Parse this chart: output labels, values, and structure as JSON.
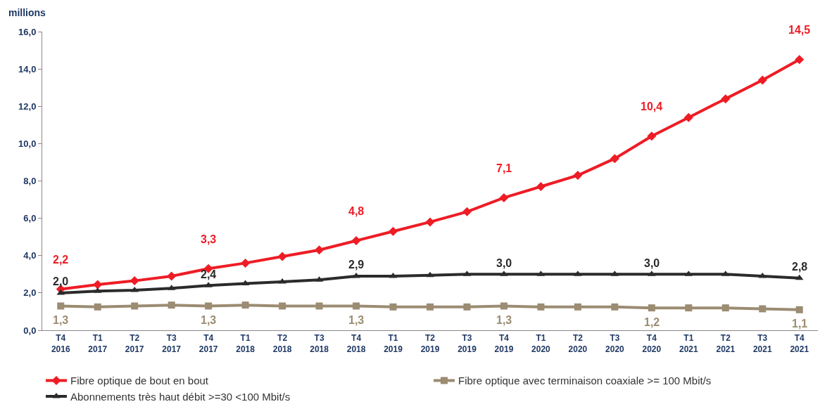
{
  "chart_data": {
    "type": "line",
    "ylabel": "millions",
    "categories": [
      "T4\n2016",
      "T1\n2017",
      "T2\n2017",
      "T3\n2017",
      "T4\n2017",
      "T1\n2018",
      "T2\n2018",
      "T3\n2018",
      "T4\n2018",
      "T1\n2019",
      "T2\n2019",
      "T3\n2019",
      "T4\n2019",
      "T1\n2020",
      "T2\n2020",
      "T3\n2020",
      "T4\n2020",
      "T1\n2021",
      "T2\n2021",
      "T3\n2021",
      "T4\n2021"
    ],
    "series": [
      {
        "name": "Fibre optique de bout en bout",
        "color": "#ee1c25",
        "marker": "diamond",
        "values": [
          2.2,
          2.45,
          2.65,
          2.9,
          3.3,
          3.6,
          3.95,
          4.3,
          4.8,
          5.3,
          5.8,
          6.35,
          7.1,
          7.7,
          8.3,
          9.2,
          10.4,
          11.4,
          12.4,
          13.4,
          14.5
        ],
        "value_labels": [
          "2,2",
          null,
          null,
          null,
          "3,3",
          null,
          null,
          null,
          "4,8",
          null,
          null,
          null,
          "7,1",
          null,
          null,
          null,
          "10,4",
          null,
          null,
          null,
          "14,5"
        ]
      },
      {
        "name": "Fibre optique avec terminaison coaxiale >= 100 Mbit/s",
        "color": "#9b8c72",
        "marker": "square",
        "values": [
          1.3,
          1.25,
          1.3,
          1.35,
          1.3,
          1.35,
          1.3,
          1.3,
          1.3,
          1.25,
          1.25,
          1.25,
          1.3,
          1.25,
          1.25,
          1.25,
          1.2,
          1.2,
          1.2,
          1.15,
          1.1
        ],
        "value_labels": [
          "1,3",
          null,
          null,
          null,
          "1,3",
          null,
          null,
          null,
          "1,3",
          null,
          null,
          null,
          "1,3",
          null,
          null,
          null,
          "1,2",
          null,
          null,
          null,
          "1,1"
        ]
      },
      {
        "name": "Abonnements très haut débit >=30 <100 Mbit/s",
        "color": "#2b2b2b",
        "marker": "triangle",
        "values": [
          2.0,
          2.1,
          2.15,
          2.25,
          2.4,
          2.5,
          2.6,
          2.7,
          2.9,
          2.9,
          2.95,
          3.0,
          3.0,
          3.0,
          3.0,
          3.0,
          3.0,
          3.0,
          3.0,
          2.9,
          2.8
        ],
        "value_labels": [
          "2,0",
          null,
          null,
          null,
          "2,4",
          null,
          null,
          null,
          "2,9",
          null,
          null,
          null,
          "3,0",
          null,
          null,
          null,
          "3,0",
          null,
          null,
          null,
          "2,8"
        ]
      }
    ],
    "ylim": [
      0,
      16
    ],
    "yticks": [
      {
        "value": 0,
        "label": "0,0"
      },
      {
        "value": 2,
        "label": "2,0"
      },
      {
        "value": 4,
        "label": "4,0"
      },
      {
        "value": 6,
        "label": "6,0"
      },
      {
        "value": 8,
        "label": "8,0"
      },
      {
        "value": 10,
        "label": "10,0"
      },
      {
        "value": 12,
        "label": "12,0"
      },
      {
        "value": 14,
        "label": "14,0"
      },
      {
        "value": 16,
        "label": "16,0"
      }
    ],
    "grid": false,
    "legend": "bottom",
    "line_style": "solid"
  }
}
